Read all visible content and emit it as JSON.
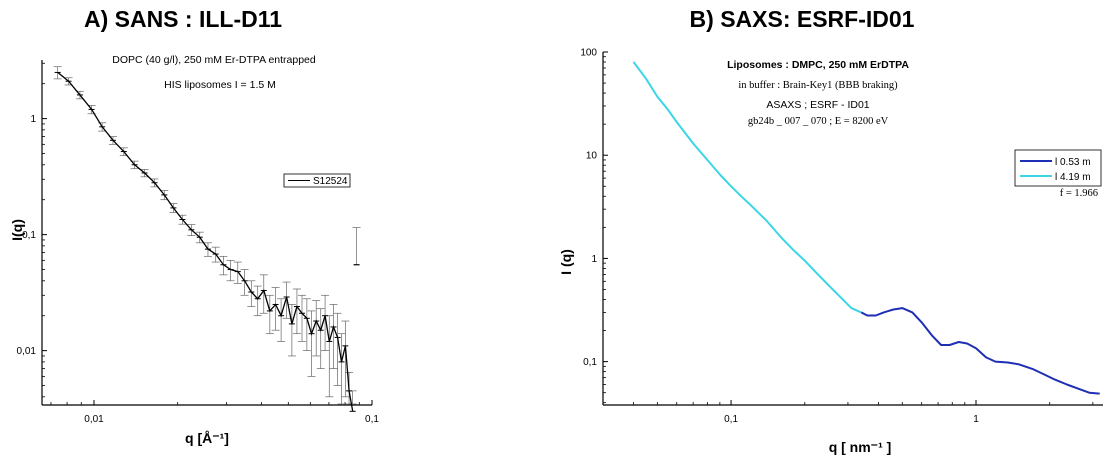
{
  "chart_data": [
    {
      "type": "line",
      "panel_title": "A)  SANS : ILL-D11",
      "annotations": [
        "DOPC (40 g/l), 250 mM Er-DTPA entrapped",
        "HIS  liposomes     I = 1.5 M"
      ],
      "xlabel": "q  [Å⁻¹]",
      "ylabel": "I(q)",
      "x_scale": "log",
      "y_scale": "log",
      "xlim": [
        0.0065,
        0.1
      ],
      "ylim": [
        0.0034,
        3.2
      ],
      "x_ticks": [
        {
          "value": 0.01,
          "label": "0,01"
        },
        {
          "value": 0.1,
          "label": "0,1"
        }
      ],
      "y_ticks": [
        {
          "value": 1,
          "label": "1"
        },
        {
          "value": 0.1,
          "label": "0,1"
        },
        {
          "value": 0.01,
          "label": "0,01"
        }
      ],
      "legend_position": "right",
      "series": [
        {
          "name": "S12524",
          "x": [
            0.0074,
            0.0081,
            0.0089,
            0.0098,
            0.0107,
            0.0117,
            0.0128,
            0.014,
            0.0152,
            0.0165,
            0.0179,
            0.0193,
            0.0208,
            0.0224,
            0.024,
            0.0257,
            0.0274,
            0.0292,
            0.031,
            0.0329,
            0.0348,
            0.0368,
            0.0388,
            0.0408,
            0.0429,
            0.045,
            0.0471,
            0.0493,
            0.0515,
            0.0537,
            0.056,
            0.0583,
            0.0606,
            0.063,
            0.0654,
            0.0678,
            0.0702,
            0.0727,
            0.0752,
            0.0777,
            0.0802,
            0.0827,
            0.0852
          ],
          "y": [
            2.5,
            2.1,
            1.6,
            1.2,
            0.85,
            0.65,
            0.52,
            0.4,
            0.34,
            0.28,
            0.22,
            0.17,
            0.135,
            0.11,
            0.095,
            0.075,
            0.068,
            0.055,
            0.05,
            0.048,
            0.04,
            0.032,
            0.028,
            0.033,
            0.022,
            0.025,
            0.02,
            0.029,
            0.017,
            0.024,
            0.021,
            0.019,
            0.014,
            0.018,
            0.015,
            0.02,
            0.012,
            0.016,
            0.013,
            0.008,
            0.011,
            0.0045,
            0.003
          ],
          "err": [
            0.3,
            0.15,
            0.12,
            0.1,
            0.07,
            0.05,
            0.04,
            0.03,
            0.025,
            0.022,
            0.02,
            0.015,
            0.012,
            0.012,
            0.01,
            0.01,
            0.01,
            0.01,
            0.01,
            0.01,
            0.01,
            0.008,
            0.008,
            0.012,
            0.008,
            0.01,
            0.008,
            0.01,
            0.008,
            0.01,
            0.009,
            0.009,
            0.008,
            0.009,
            0.008,
            0.01,
            0.008,
            0.009,
            0.008,
            0.006,
            0.007,
            0.002,
            0.0015
          ],
          "outlier": {
            "x": 0.088,
            "y": 0.055,
            "err": 0.06
          },
          "color": "#000000"
        }
      ]
    },
    {
      "type": "line",
      "panel_title": "B) SAXS: ESRF-ID01",
      "annotations": [
        "Liposomes : DMPC, 250 mM ErDTPA",
        "in buffer : Brain-Key1  (BBB braking)",
        "ASAXS ; ESRF - ID01",
        "gb24b _ 007 _ 070  ;  E = 8200 eV",
        "f = 1.966"
      ],
      "xlabel": "q  [ nm⁻¹ ]",
      "ylabel": "I (q)",
      "x_scale": "log",
      "y_scale": "log",
      "xlim": [
        0.03,
        3.3
      ],
      "ylim": [
        0.038,
        100
      ],
      "x_ticks": [
        {
          "value": 0.1,
          "label": "0,1"
        },
        {
          "value": 1,
          "label": "1"
        }
      ],
      "y_ticks": [
        {
          "value": 100,
          "label": "100"
        },
        {
          "value": 10,
          "label": "10"
        },
        {
          "value": 1,
          "label": "1"
        },
        {
          "value": 0.1,
          "label": "0,1"
        }
      ],
      "legend_position": "right",
      "series": [
        {
          "name": "l 0.53 m",
          "color": "#1f2fb5",
          "x": [
            0.34,
            0.36,
            0.39,
            0.42,
            0.46,
            0.5,
            0.55,
            0.6,
            0.66,
            0.72,
            0.78,
            0.85,
            0.92,
            1.0,
            1.1,
            1.2,
            1.35,
            1.5,
            1.7,
            1.9,
            2.1,
            2.35,
            2.6,
            2.9,
            3.2
          ],
          "y": [
            0.3,
            0.28,
            0.28,
            0.3,
            0.32,
            0.33,
            0.3,
            0.24,
            0.18,
            0.145,
            0.145,
            0.155,
            0.15,
            0.135,
            0.11,
            0.1,
            0.098,
            0.094,
            0.085,
            0.075,
            0.067,
            0.06,
            0.055,
            0.05,
            0.049
          ]
        },
        {
          "name": "l 4.19 m",
          "color": "#3ad6e6",
          "x": [
            0.04,
            0.045,
            0.05,
            0.055,
            0.06,
            0.07,
            0.08,
            0.09,
            0.1,
            0.11,
            0.12,
            0.14,
            0.16,
            0.18,
            0.2,
            0.22,
            0.25,
            0.28,
            0.31,
            0.34
          ],
          "y": [
            80,
            55,
            37,
            28,
            21,
            13,
            9,
            6.5,
            5,
            4,
            3.3,
            2.3,
            1.6,
            1.2,
            0.95,
            0.75,
            0.55,
            0.42,
            0.33,
            0.3
          ]
        }
      ]
    }
  ]
}
